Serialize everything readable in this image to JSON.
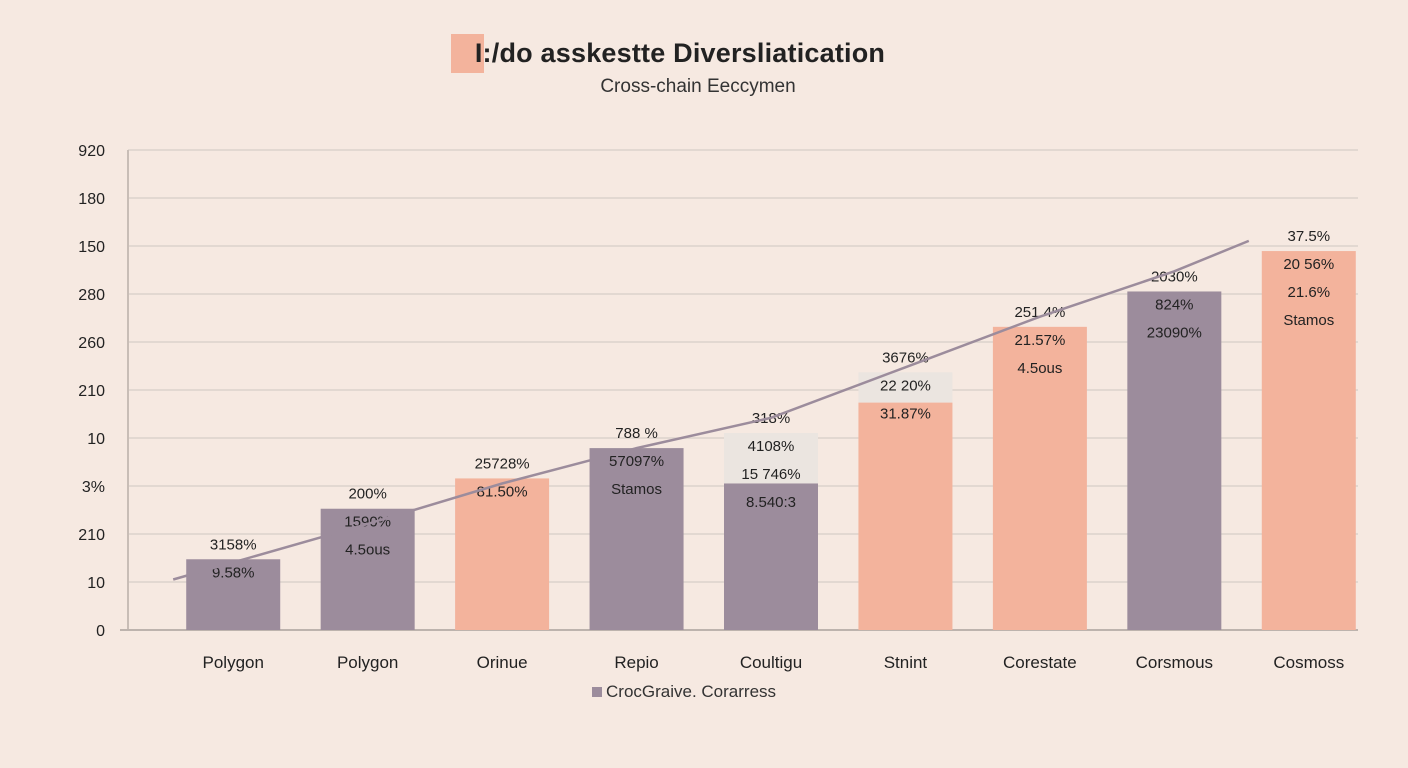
{
  "title": "I:/do asskestte Diverslіatication",
  "subtitle": "Cross-chain Eeccymen",
  "legend": {
    "label": "CrocGraive. Corarress",
    "color": "#9c8c9c"
  },
  "colors": {
    "purple": "#9c8c9c",
    "salmon": "#f3b39c",
    "light": "#ebe5e0",
    "line": "#9c8c9c",
    "grid": "#dcd3cc",
    "background": "#f6e9e1"
  },
  "chart_data": {
    "type": "bar",
    "y_tick_labels": [
      "0",
      "10",
      "210",
      "3%",
      "10",
      "210",
      "260",
      "280",
      "150",
      "180",
      "920"
    ],
    "categories": [
      "Polygon",
      "Polygon",
      "Orinue",
      "Repio",
      "Coultigu",
      "Stnint",
      "Corestate",
      "Corsmous",
      "Cosmoss"
    ],
    "values": [
      1.4,
      2.4,
      3.0,
      3.6,
      2.9,
      4.5,
      6.0,
      6.7,
      7.5
    ],
    "upper_values": [
      null,
      null,
      null,
      null,
      3.9,
      5.1,
      null,
      null,
      null
    ],
    "ylim": [
      0,
      9.5
    ],
    "bar_colors": [
      "purple",
      "purple",
      "salmon",
      "purple",
      "purple",
      "salmon",
      "salmon",
      "purple",
      "salmon"
    ],
    "labels": [
      [
        "3158%",
        "9.58%"
      ],
      [
        "200%",
        "1590%",
        "4.5ous"
      ],
      [
        "25728%",
        "81.50%"
      ],
      [
        "788 %",
        "57097%",
        "Stamos"
      ],
      [
        "318%",
        "4108%",
        "15 746%",
        "8.540:3"
      ],
      [
        "3676%",
        "22 20%",
        "31.87%"
      ],
      [
        "251.4%",
        "21.57%",
        "4.5ous"
      ],
      [
        "2030%",
        "824%",
        "23090%"
      ],
      [
        "37.5%",
        "20 56%",
        "21.6%",
        "Stamos"
      ]
    ],
    "trend_line": [
      1.0,
      2.1,
      2.9,
      3.6,
      4.2,
      5.2,
      6.2,
      7.1,
      7.7
    ],
    "grid": true,
    "legend_position": "bottom-center"
  }
}
